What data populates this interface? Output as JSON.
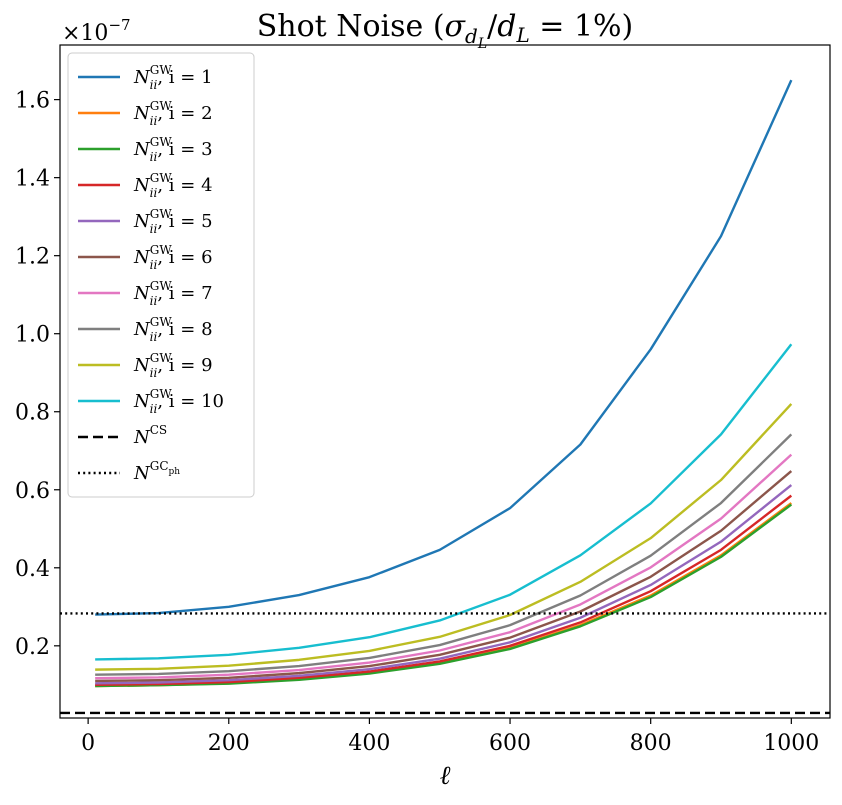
{
  "chart_data": {
    "type": "line",
    "title": "Shot Noise  (σ_{d_L}/d_L = 1%)",
    "xlabel": "ℓ",
    "ylabel": "",
    "y_scale_label": "×10^−7",
    "xlim": [
      -40,
      1055
    ],
    "ylim": [
      0.015,
      1.74
    ],
    "xticks": [
      0,
      200,
      400,
      600,
      800,
      1000
    ],
    "xtick_labels": [
      "0",
      "200",
      "400",
      "600",
      "800",
      "1000"
    ],
    "yticks": [
      0.2,
      0.4,
      0.6,
      0.8,
      1.0,
      1.2,
      1.4,
      1.6
    ],
    "ytick_labels": [
      "0.2",
      "0.4",
      "0.6",
      "0.8",
      "1.0",
      "1.2",
      "1.4",
      "1.6"
    ],
    "grid": false,
    "legend_position": "top-left",
    "x": [
      10,
      100,
      200,
      300,
      400,
      500,
      600,
      700,
      800,
      900,
      1000
    ],
    "series": [
      {
        "name": "N_ii^GW, i = 1",
        "base": "N",
        "sup": "GW",
        "sub": "ii",
        "suffix": ", i = 1",
        "color": "#1f77b4",
        "style": "solid",
        "values": [
          0.28,
          0.284,
          0.3,
          0.33,
          0.376,
          0.446,
          0.553,
          0.716,
          0.96,
          1.25,
          1.65
        ]
      },
      {
        "name": "N_ii^GW, i = 2",
        "base": "N",
        "sup": "GW",
        "sub": "ii",
        "suffix": ", i = 2",
        "color": "#ff7f0e",
        "style": "solid",
        "values": [
          0.097,
          0.099,
          0.104,
          0.114,
          0.13,
          0.155,
          0.194,
          0.253,
          0.329,
          0.432,
          0.566
        ]
      },
      {
        "name": "N_ii^GW, i = 3",
        "base": "N",
        "sup": "GW",
        "sub": "ii",
        "suffix": ", i = 3",
        "color": "#2ca02c",
        "style": "solid",
        "values": [
          0.097,
          0.099,
          0.103,
          0.113,
          0.129,
          0.154,
          0.192,
          0.25,
          0.325,
          0.428,
          0.562
        ]
      },
      {
        "name": "N_ii^GW, i = 4",
        "base": "N",
        "sup": "GW",
        "sub": "ii",
        "suffix": ", i = 4",
        "color": "#d62728",
        "style": "solid",
        "values": [
          0.1,
          0.102,
          0.107,
          0.118,
          0.134,
          0.16,
          0.2,
          0.26,
          0.34,
          0.446,
          0.585
        ]
      },
      {
        "name": "N_ii^GW, i = 5",
        "base": "N",
        "sup": "GW",
        "sub": "ii",
        "suffix": ", i = 5",
        "color": "#9467bd",
        "style": "solid",
        "values": [
          0.104,
          0.106,
          0.112,
          0.123,
          0.14,
          0.167,
          0.209,
          0.272,
          0.356,
          0.467,
          0.612
        ]
      },
      {
        "name": "N_ii^GW, i = 6",
        "base": "N",
        "sup": "GW",
        "sub": "ii",
        "suffix": ", i = 6",
        "color": "#8c564b",
        "style": "solid",
        "values": [
          0.11,
          0.112,
          0.118,
          0.13,
          0.148,
          0.177,
          0.221,
          0.288,
          0.377,
          0.495,
          0.648
        ]
      },
      {
        "name": "N_ii^GW, i = 7",
        "base": "N",
        "sup": "GW",
        "sub": "ii",
        "suffix": ", i = 7",
        "color": "#e377c2",
        "style": "solid",
        "values": [
          0.117,
          0.119,
          0.126,
          0.138,
          0.157,
          0.188,
          0.235,
          0.306,
          0.401,
          0.526,
          0.69
        ]
      },
      {
        "name": "N_ii^GW, i = 8",
        "base": "N",
        "sup": "GW",
        "sub": "ii",
        "suffix": ", i = 8",
        "color": "#7f7f7f",
        "style": "solid",
        "values": [
          0.126,
          0.128,
          0.135,
          0.148,
          0.169,
          0.202,
          0.253,
          0.329,
          0.431,
          0.566,
          0.742
        ]
      },
      {
        "name": "N_ii^GW, i = 9",
        "base": "N",
        "sup": "GW",
        "sub": "ii",
        "suffix": ", i = 9",
        "color": "#bcbd22",
        "style": "solid",
        "values": [
          0.139,
          0.141,
          0.149,
          0.164,
          0.187,
          0.223,
          0.279,
          0.364,
          0.476,
          0.625,
          0.82
        ]
      },
      {
        "name": "N_ii^GW, i = 10",
        "base": "N",
        "sup": "GW",
        "sub": "ii",
        "suffix": ", i = 10",
        "color": "#17becf",
        "style": "solid",
        "values": [
          0.165,
          0.168,
          0.177,
          0.195,
          0.222,
          0.265,
          0.331,
          0.432,
          0.565,
          0.742,
          0.973
        ]
      },
      {
        "name": "N^CS",
        "base": "N",
        "sup": "CS",
        "sub": "",
        "suffix": "",
        "color": "#000000",
        "style": "dashed",
        "span": "full",
        "values": [
          0.028,
          0.028,
          0.028,
          0.028,
          0.028,
          0.028,
          0.028,
          0.028,
          0.028,
          0.028,
          0.028
        ]
      },
      {
        "name": "N^GC_ph",
        "base": "N",
        "sup": "GC",
        "sup_sub": "ph",
        "sub": "",
        "suffix": "",
        "color": "#000000",
        "style": "dotted",
        "span": "full",
        "values": [
          0.283,
          0.283,
          0.283,
          0.283,
          0.283,
          0.283,
          0.283,
          0.283,
          0.283,
          0.283,
          0.283
        ]
      }
    ]
  }
}
